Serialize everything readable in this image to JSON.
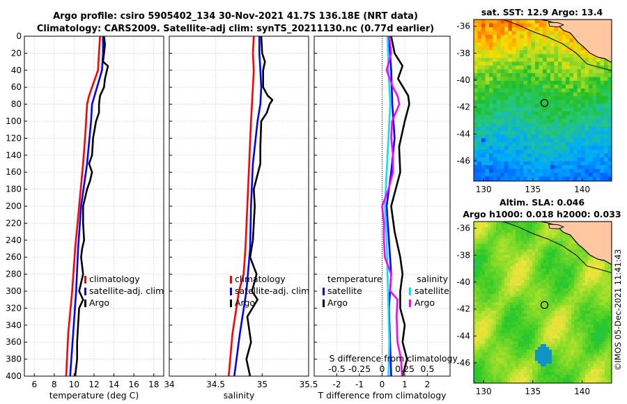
{
  "title_line1": "Argo profile: csiro 5905402_134 30-Nov-2021 41.7S 136.18E (NRT data)",
  "title_line2": "Climatology: CARS2009. Satellite-adj clim: synTS_20211130.nc (0.77d earlier)",
  "watermark": "©IMOS 05-Dec-2021 11:41:43",
  "colors": {
    "climatology": "#ff0000",
    "satellite": "#0000ff",
    "argo": "#000000",
    "t_diff": "#0000ff",
    "s_diff_argo": "#ff00ff",
    "s_diff_sat": "#00e5ff",
    "land": "#ffc8a0"
  },
  "chart_data": [
    {
      "type": "line",
      "panel": "temperature",
      "xlabel": "temperature (deg C)",
      "xlim": [
        5,
        19
      ],
      "xticks": [
        6,
        8,
        10,
        12,
        14,
        16,
        18
      ],
      "ylim": [
        400,
        0
      ],
      "yticks": [
        0,
        20,
        40,
        60,
        80,
        100,
        120,
        140,
        160,
        180,
        200,
        220,
        240,
        260,
        280,
        300,
        320,
        340,
        360,
        380,
        400
      ],
      "legend": [
        "climatology",
        "satellite-adj. clim",
        "Argo"
      ],
      "series": [
        {
          "name": "climatology",
          "depth": [
            0,
            20,
            40,
            60,
            70,
            80,
            100,
            120,
            150,
            200,
            250,
            300,
            350,
            400
          ],
          "values": [
            12.6,
            12.5,
            12.4,
            11.8,
            11.5,
            11.3,
            11.2,
            11.1,
            10.9,
            10.5,
            10.1,
            9.8,
            9.4,
            9.2
          ]
        },
        {
          "name": "satellite-adj. clim",
          "depth": [
            0,
            20,
            40,
            60,
            80,
            100,
            150,
            200,
            250,
            300,
            350,
            400
          ],
          "values": [
            12.9,
            12.9,
            12.8,
            12.3,
            11.8,
            11.7,
            11.3,
            10.7,
            10.4,
            10.2,
            9.9,
            9.6
          ]
        },
        {
          "name": "Argo",
          "depth": [
            0,
            10,
            20,
            30,
            35,
            45,
            50,
            60,
            70,
            80,
            90,
            100,
            120,
            140,
            150,
            160,
            170,
            180,
            200,
            220,
            240,
            250,
            260,
            280,
            300,
            310,
            320,
            340,
            360,
            380,
            400
          ],
          "values": [
            13.0,
            13.1,
            13.0,
            12.9,
            13.4,
            13.2,
            13.1,
            13.0,
            12.6,
            12.5,
            12.5,
            12.2,
            11.9,
            11.8,
            11.5,
            11.8,
            11.6,
            11.3,
            10.9,
            10.9,
            11.0,
            10.8,
            10.7,
            10.9,
            10.5,
            10.9,
            10.5,
            10.4,
            10.3,
            10.3,
            10.1
          ]
        }
      ]
    },
    {
      "type": "line",
      "panel": "salinity",
      "xlabel": "salinity",
      "xlim": [
        34,
        35.5
      ],
      "xticks": [
        34,
        34.5,
        35,
        35.5
      ],
      "xticklabels": [
        "34",
        "34.5",
        "35",
        "35.5"
      ],
      "ylim": [
        400,
        0
      ],
      "legend": [
        "climatology",
        "satellite-adj. clim",
        "Argo"
      ],
      "series": [
        {
          "name": "climatology",
          "depth": [
            0,
            20,
            40,
            60,
            80,
            100,
            150,
            200,
            250,
            280,
            300,
            350,
            400
          ],
          "values": [
            34.91,
            34.9,
            34.91,
            34.9,
            34.89,
            34.88,
            34.86,
            34.84,
            34.82,
            34.8,
            34.75,
            34.68,
            34.64
          ]
        },
        {
          "name": "satellite-adj. clim",
          "depth": [
            0,
            20,
            40,
            60,
            80,
            100,
            120,
            150,
            200,
            250,
            300,
            350,
            400
          ],
          "values": [
            34.97,
            34.97,
            34.98,
            34.99,
            34.98,
            34.95,
            34.93,
            34.9,
            34.88,
            34.87,
            34.83,
            34.76,
            34.7
          ]
        },
        {
          "name": "Argo",
          "depth": [
            0,
            20,
            30,
            40,
            60,
            70,
            75,
            80,
            90,
            100,
            130,
            150,
            180,
            200,
            240,
            260,
            280,
            300,
            310,
            330,
            360,
            380,
            400
          ],
          "values": [
            34.99,
            35.0,
            35.03,
            35.01,
            35.01,
            35.06,
            35.11,
            35.08,
            35.05,
            34.99,
            34.98,
            34.98,
            34.91,
            34.92,
            34.9,
            34.87,
            34.94,
            34.89,
            34.95,
            34.84,
            34.88,
            34.83,
            34.87
          ]
        }
      ]
    },
    {
      "type": "line",
      "panel": "differences",
      "xlabel": "T difference from climatology",
      "xlabel_top": "S difference from climatology",
      "xlim": [
        -3,
        3
      ],
      "xticks": [
        -2,
        -1,
        0,
        1,
        2
      ],
      "s_xticks": [
        -0.5,
        -0.25,
        0,
        0.25,
        0.5
      ],
      "s_xticklabels": [
        "-0.5",
        "-0.25",
        "0",
        "0.25",
        "0.5"
      ],
      "ylim": [
        400,
        0
      ],
      "legend_temperature": [
        "temperature",
        "satellite",
        "Argo"
      ],
      "legend_salinity": [
        "salinity",
        "satellite",
        "Argo"
      ],
      "series": [
        {
          "name": "T satellite",
          "depth": [
            0,
            40,
            80,
            120,
            160,
            200,
            240,
            280,
            320,
            360,
            400
          ],
          "values": [
            0.3,
            0.4,
            0.45,
            0.55,
            0.4,
            0.2,
            0.3,
            0.4,
            0.3,
            0.35,
            0.4
          ]
        },
        {
          "name": "T Argo",
          "depth": [
            0,
            20,
            35,
            50,
            70,
            80,
            100,
            130,
            160,
            200,
            230,
            260,
            280,
            300,
            320,
            340,
            360,
            380,
            400
          ],
          "values": [
            0.4,
            0.55,
            0.9,
            0.7,
            1.15,
            1.2,
            1.0,
            0.75,
            0.8,
            0.4,
            0.55,
            0.8,
            0.9,
            0.8,
            0.8,
            1.0,
            0.9,
            1.1,
            0.9
          ]
        },
        {
          "name": "S satellite",
          "depth": [
            0,
            40,
            80,
            120,
            160,
            200,
            240,
            280,
            320,
            360,
            400
          ],
          "values": [
            0.06,
            0.07,
            0.09,
            0.07,
            0.05,
            0.03,
            0.05,
            0.06,
            0.07,
            0.08,
            0.07
          ]
        },
        {
          "name": "S Argo",
          "depth": [
            0,
            20,
            40,
            60,
            70,
            80,
            100,
            120,
            140,
            160,
            180,
            200,
            220,
            240,
            260,
            280,
            300,
            310,
            330,
            360,
            380,
            400
          ],
          "values": [
            0.08,
            0.1,
            0.05,
            0.12,
            0.17,
            0.19,
            0.11,
            0.1,
            0.12,
            0.12,
            0.07,
            0.0,
            0.02,
            0.02,
            0.03,
            0.1,
            0.09,
            0.17,
            0.16,
            0.17,
            0.21,
            0.22
          ]
        }
      ]
    },
    {
      "type": "heatmap",
      "panel": "sst_map",
      "title": "sat. SST: 12.9 Argo: 13.4",
      "xlim": [
        129,
        143
      ],
      "ylim": [
        -47.5,
        -35.5
      ],
      "xticks": [
        130,
        135,
        140
      ],
      "yticks": [
        -36,
        -38,
        -40,
        -42,
        -44,
        -46
      ],
      "marker": {
        "lon": 136.18,
        "lat": -41.7
      }
    },
    {
      "type": "heatmap",
      "panel": "sla_map",
      "title_line1": "Altim. SLA: 0.046",
      "title_line2": "Argo h1000: 0.018 h2000: 0.033",
      "xlim": [
        129,
        143
      ],
      "ylim": [
        -47.5,
        -35.5
      ],
      "xticks": [
        130,
        135,
        140
      ],
      "yticks": [
        -36,
        -38,
        -40,
        -42,
        -44,
        -46
      ],
      "marker": {
        "lon": 136.18,
        "lat": -41.7
      }
    }
  ]
}
